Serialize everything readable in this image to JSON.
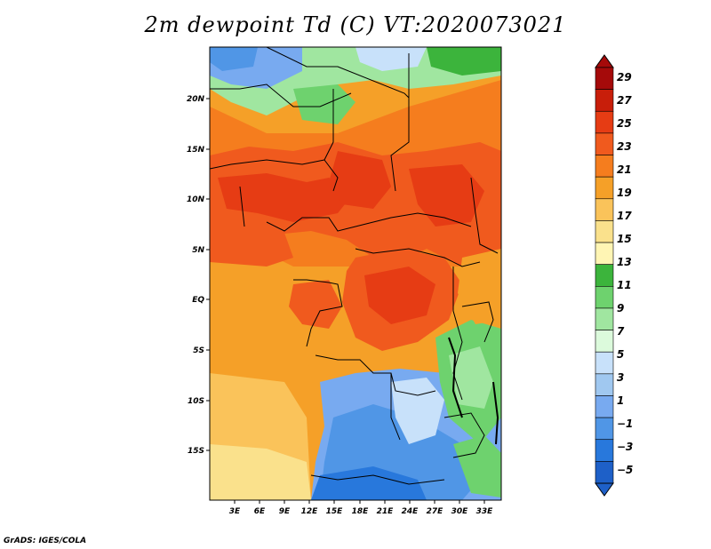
{
  "title": "2m dewpoint Td (C) VT:2020073021",
  "credit": "GrADS: IGES/COLA",
  "map": {
    "lat_labels": [
      "20N",
      "15N",
      "10N",
      "5N",
      "EQ",
      "5S",
      "10S",
      "15S"
    ],
    "lon_labels": [
      "3E",
      "6E",
      "9E",
      "12E",
      "15E",
      "18E",
      "21E",
      "24E",
      "27E",
      "30E",
      "33E"
    ]
  },
  "colorbar": {
    "labels": [
      "29",
      "27",
      "25",
      "23",
      "21",
      "19",
      "17",
      "15",
      "13",
      "11",
      "9",
      "7",
      "5",
      "3",
      "1",
      "−1",
      "−3",
      "−5"
    ],
    "colors": [
      "#a50a0a",
      "#c81e0a",
      "#e63c14",
      "#f05a1e",
      "#f57d1e",
      "#f5a028",
      "#fac35a",
      "#fae18c",
      "#fff5b4",
      "#3cb43c",
      "#6ed26e",
      "#a0e6a0",
      "#dcfadc",
      "#c8e1fa",
      "#a0c8f0",
      "#78aaf0",
      "#5096e6",
      "#2878dc",
      "#1e60c8"
    ],
    "arrow_top_color": "#a50a0a",
    "arrow_bottom_color": "#1e60c8"
  }
}
